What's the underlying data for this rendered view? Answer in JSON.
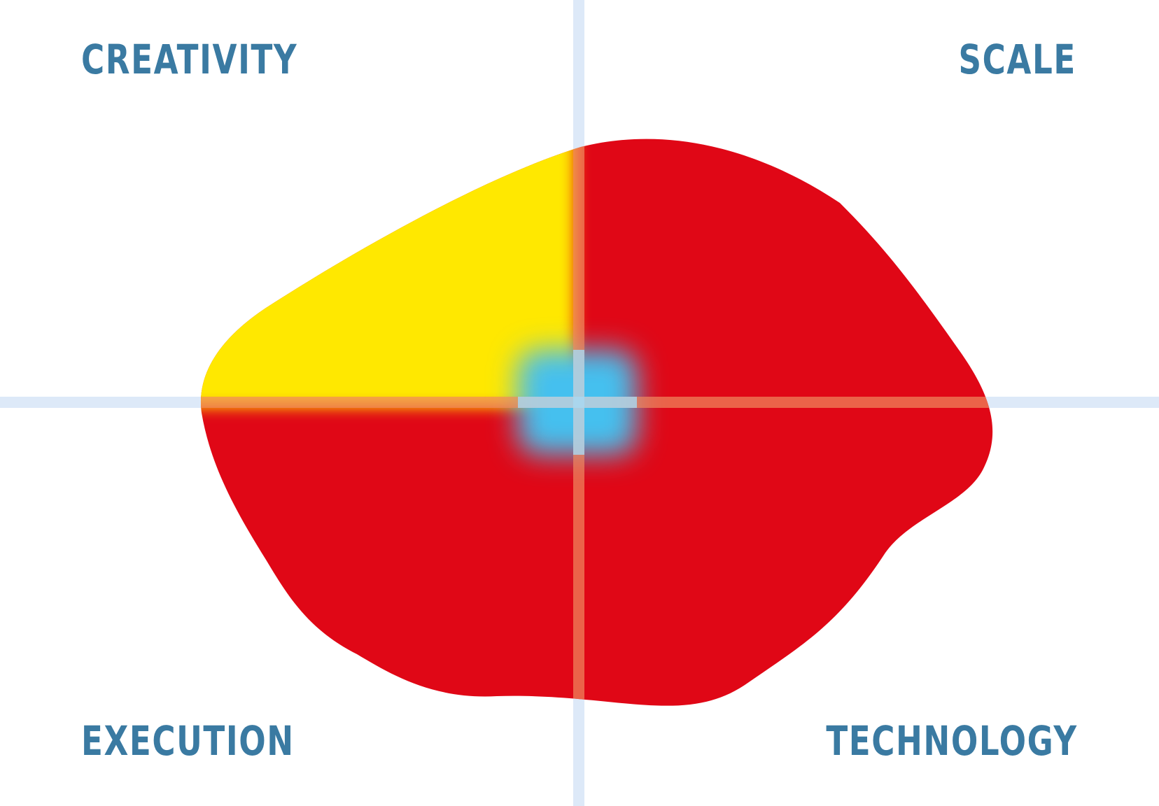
{
  "quadrants": {
    "top_left": "CREATIVITY",
    "top_right": "SCALE",
    "bottom_left": "EXECUTION",
    "bottom_right": "TECHNOLOGY"
  },
  "colors": {
    "label": "#3a7aa2",
    "axis": "#dde9f8",
    "blob_red": "#e00716",
    "blob_yellow": "#ffe800",
    "center_blue": "#44c0ef",
    "overlay_line": "#f08a60"
  }
}
